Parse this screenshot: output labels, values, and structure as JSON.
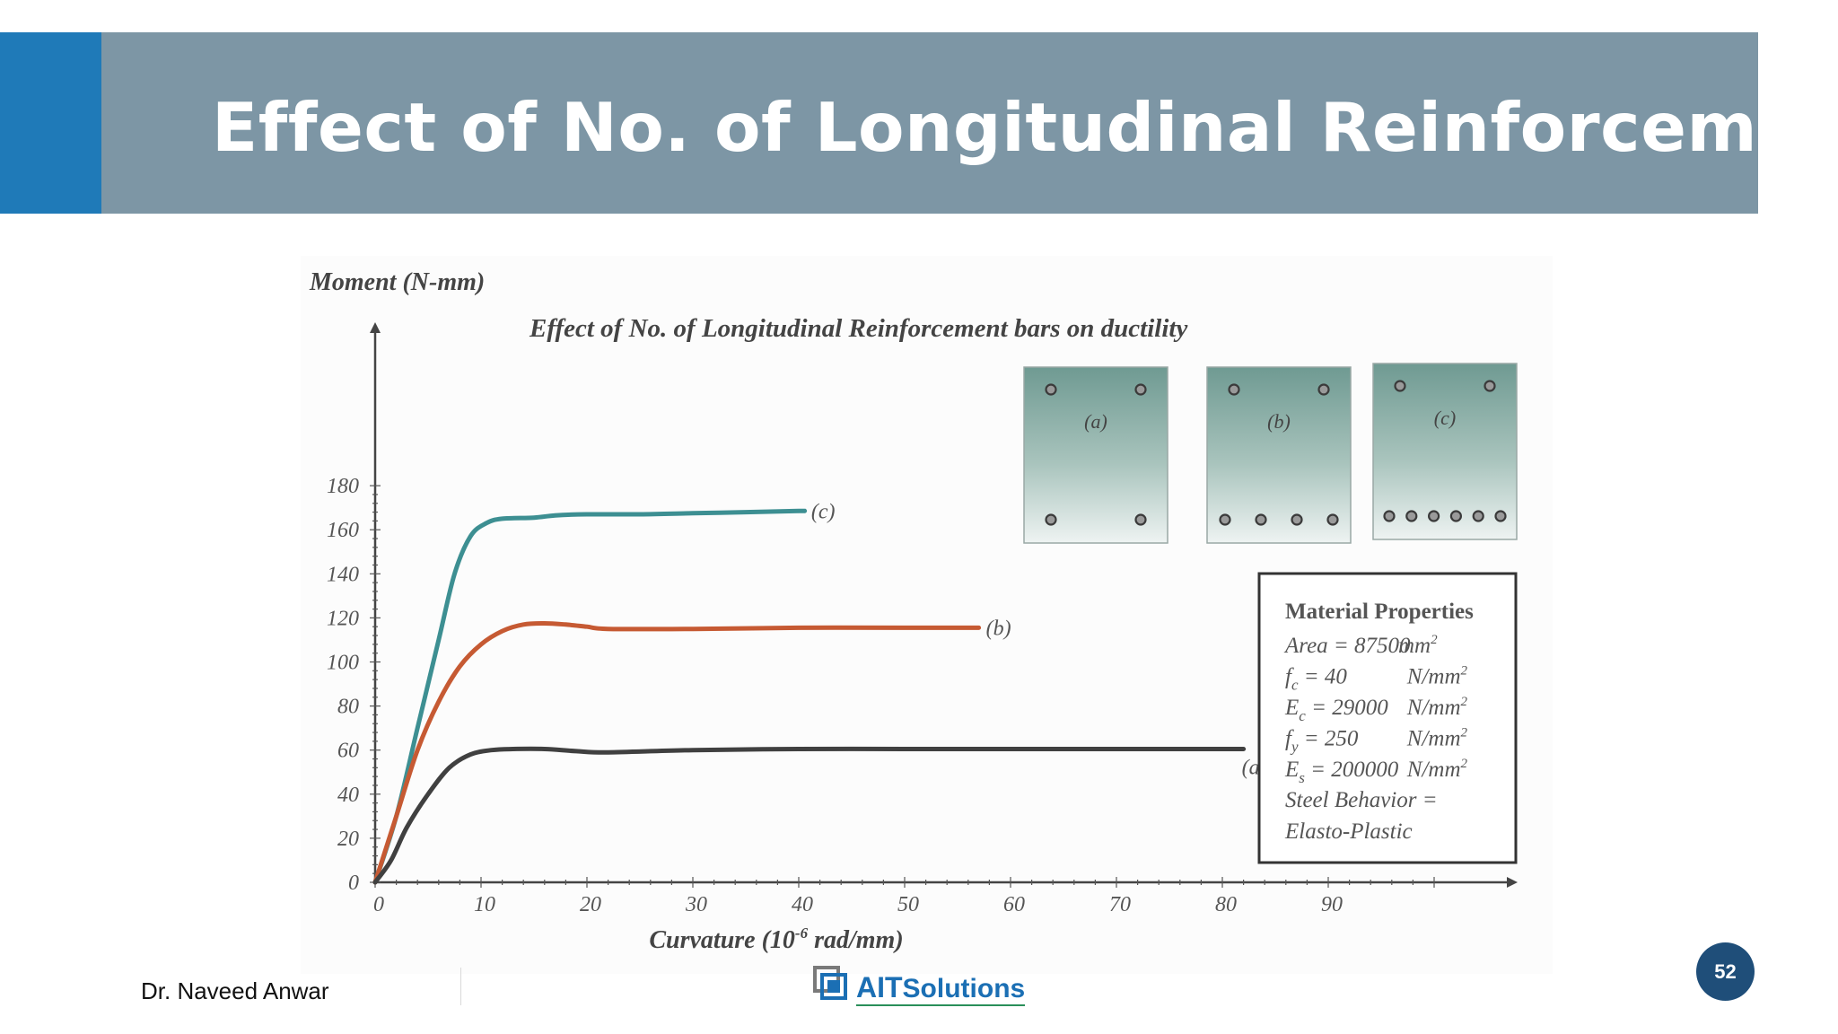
{
  "slide": {
    "title": "Effect of No. of Longitudinal Reinforcement",
    "author": "Dr. Naveed Anwar",
    "page_number": "52",
    "logo": {
      "ait": "AIT",
      "solutions": "Solutions"
    },
    "colors": {
      "accent": "#1f7ab8",
      "banner": "#7d96a5",
      "badge": "#1f4e79"
    }
  },
  "chart_data": {
    "type": "line",
    "title": "Effect of No. of Longitudinal Reinforcement bars on ductility",
    "ylabel": "Moment (N-mm)",
    "xlabel_main": "Curvature (10",
    "xlabel_exp": "-6",
    "xlabel_tail": " rad/mm)",
    "xlim": [
      0,
      108
    ],
    "ylim": [
      0,
      180
    ],
    "xticks": [
      0,
      10,
      20,
      30,
      40,
      50,
      60,
      70,
      80,
      90
    ],
    "yticks": [
      0,
      20,
      40,
      60,
      80,
      100,
      120,
      140,
      160,
      180
    ],
    "grid": false,
    "series": [
      {
        "name": "(c)",
        "color": "#3d8f92",
        "points": [
          [
            0,
            0
          ],
          [
            2,
            30
          ],
          [
            4,
            70
          ],
          [
            6,
            110
          ],
          [
            7.5,
            140
          ],
          [
            9,
            157
          ],
          [
            10.5,
            163
          ],
          [
            12,
            165
          ],
          [
            15,
            165.5
          ],
          [
            17,
            166.5
          ],
          [
            20,
            167
          ],
          [
            25,
            167
          ],
          [
            30,
            167.5
          ],
          [
            35,
            168
          ],
          [
            40,
            168.5
          ],
          [
            40.5,
            168.5
          ]
        ]
      },
      {
        "name": "(b)",
        "color": "#c65a33",
        "points": [
          [
            0,
            0
          ],
          [
            2,
            30
          ],
          [
            4,
            60
          ],
          [
            6,
            82
          ],
          [
            8,
            98
          ],
          [
            10,
            108
          ],
          [
            12,
            114
          ],
          [
            14,
            117
          ],
          [
            16,
            117.5
          ],
          [
            18,
            117
          ],
          [
            20,
            116
          ],
          [
            22,
            115
          ],
          [
            30,
            115
          ],
          [
            40,
            115.5
          ],
          [
            50,
            115.5
          ],
          [
            57,
            115.5
          ]
        ]
      },
      {
        "name": "(a)",
        "color": "#404040",
        "points": [
          [
            0,
            0
          ],
          [
            1.5,
            10
          ],
          [
            3,
            25
          ],
          [
            5,
            40
          ],
          [
            7,
            52
          ],
          [
            9,
            58
          ],
          [
            11,
            60
          ],
          [
            13,
            60.5
          ],
          [
            16,
            60.5
          ],
          [
            19,
            59.5
          ],
          [
            22,
            59
          ],
          [
            30,
            60
          ],
          [
            40,
            60.5
          ],
          [
            50,
            60.5
          ],
          [
            60,
            60.5
          ],
          [
            82,
            60.5
          ]
        ]
      }
    ],
    "sections": [
      {
        "label": "(a)",
        "top_bars": 2,
        "bottom_bars": 2
      },
      {
        "label": "(b)",
        "top_bars": 2,
        "bottom_bars": 4
      },
      {
        "label": "(c)",
        "top_bars": 2,
        "bottom_bars": 6
      }
    ],
    "material_properties": {
      "heading": "Material Properties",
      "lines": [
        {
          "sym": "Area",
          "sub": "",
          "value": "= 87500",
          "unit": "mm",
          "exp": "2"
        },
        {
          "sym": "f",
          "sub": "c",
          "value": "= 40",
          "unit": "N/mm",
          "exp": "2"
        },
        {
          "sym": "E",
          "sub": "c",
          "value": "= 29000",
          "unit": "N/mm",
          "exp": "2"
        },
        {
          "sym": "f",
          "sub": "y",
          "value": "= 250",
          "unit": "N/mm",
          "exp": "2"
        },
        {
          "sym": "E",
          "sub": "s",
          "value": "= 200000",
          "unit": "N/mm",
          "exp": "2"
        }
      ],
      "steel_behavior_1": "Steel Behavior =",
      "steel_behavior_2": "Elasto-Plastic"
    }
  }
}
